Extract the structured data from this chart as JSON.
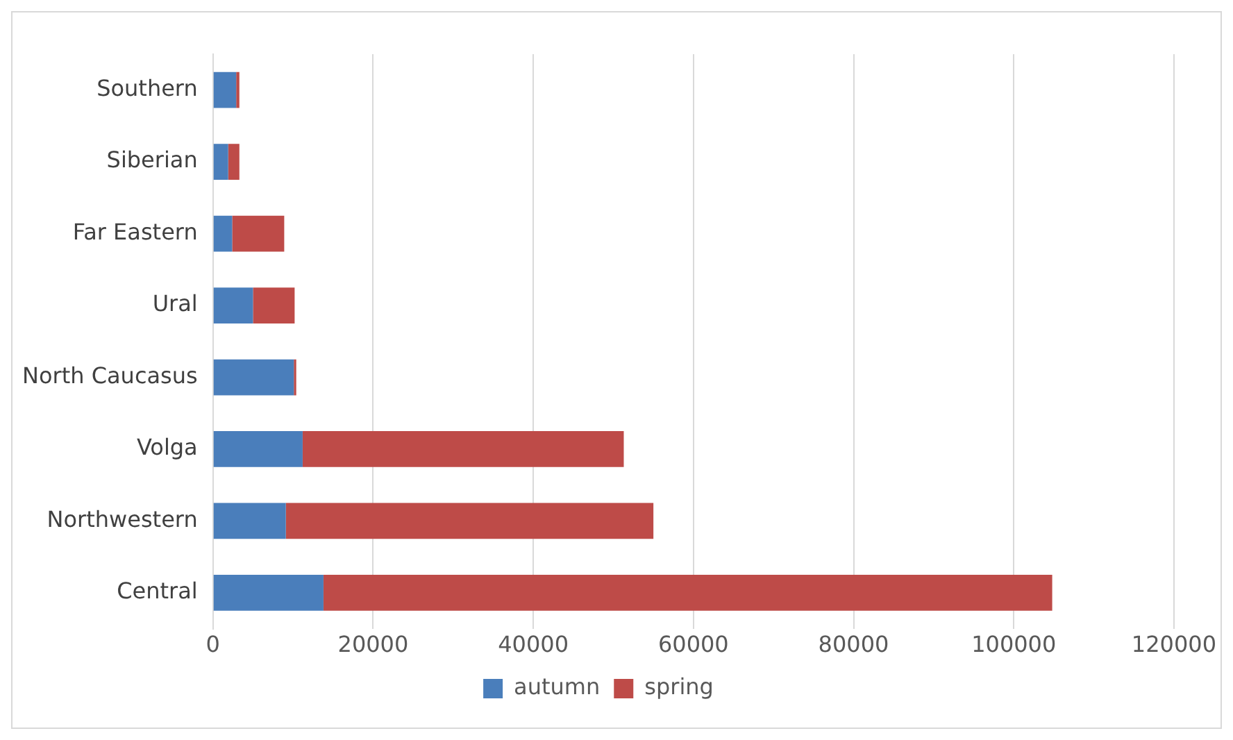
{
  "chart_data": {
    "type": "bar",
    "orientation": "horizontal",
    "stacked": true,
    "categories": [
      "Southern",
      "Siberian",
      "Far Eastern",
      "Ural",
      "North Caucasus",
      "Volga",
      "Northwestern",
      "Central"
    ],
    "series": [
      {
        "name": "autumn",
        "color": "#4a7ebb",
        "values": [
          2900,
          1900,
          2400,
          5000,
          10100,
          11200,
          9100,
          13800
        ]
      },
      {
        "name": "spring",
        "color": "#be4b48",
        "values": [
          400,
          1400,
          6500,
          5200,
          300,
          40100,
          45900,
          91000
        ]
      }
    ],
    "xlim": [
      0,
      120000
    ],
    "xticks": [
      0,
      20000,
      40000,
      60000,
      80000,
      100000,
      120000
    ],
    "grid": "x",
    "legend": "bottom"
  }
}
